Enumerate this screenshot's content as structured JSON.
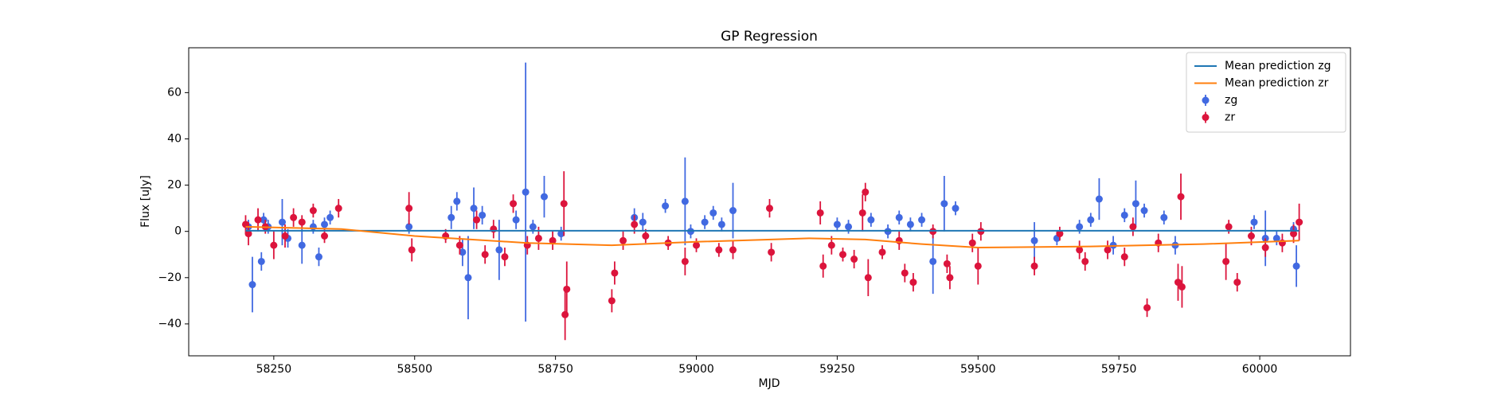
{
  "chart_data": {
    "type": "errorbar_scatter",
    "title": "GP Regression",
    "x_label": "MJD",
    "y_label": "Flux [uJy]",
    "xlim": [
      58099,
      60161
    ],
    "ylim": [
      -53.8,
      79.4
    ],
    "xticks": [
      58250,
      58500,
      58750,
      59000,
      59250,
      59500,
      59750,
      60000
    ],
    "yticks": [
      {
        "value": -40,
        "label": "−40"
      },
      {
        "value": -20,
        "label": "−20"
      },
      0,
      20,
      40,
      60
    ],
    "legend": "upper right",
    "lines": [
      {
        "name": "Mean prediction zg",
        "color": "#1f77b4",
        "x": [
          58200,
          60070
        ],
        "values": [
          0.3,
          0.3
        ]
      },
      {
        "name": "Mean prediction zr",
        "color": "#ff7f0e",
        "x": [
          58200,
          58370,
          58500,
          58700,
          58850,
          59000,
          59200,
          59300,
          59400,
          59500,
          59700,
          59900,
          60070
        ],
        "values": [
          2,
          1,
          -2,
          -5,
          -6,
          -4.5,
          -3,
          -3.5,
          -5.5,
          -7,
          -6.5,
          -5.5,
          -4
        ]
      }
    ],
    "series": [
      {
        "name": "zg",
        "color": "#4169e1",
        "x": [
          58205,
          58212,
          58228,
          58232,
          58240,
          58265,
          58275,
          58300,
          58320,
          58330,
          58340,
          58350,
          58490,
          58565,
          58575,
          58585,
          58595,
          58605,
          58620,
          58650,
          58680,
          58697,
          58710,
          58730,
          58760,
          58890,
          58905,
          58945,
          58980,
          58990,
          59015,
          59030,
          59045,
          59065,
          59250,
          59270,
          59310,
          59340,
          59360,
          59380,
          59400,
          59420,
          59440,
          59460,
          59600,
          59640,
          59680,
          59700,
          59715,
          59740,
          59760,
          59780,
          59795,
          59830,
          59850,
          59990,
          60010,
          60030,
          60060,
          60065
        ],
        "values": [
          2,
          -23,
          -13,
          5,
          2,
          4,
          -3,
          -6,
          2,
          -11,
          3,
          6,
          2,
          6,
          13,
          -9,
          -20,
          10,
          7,
          -8,
          5,
          17,
          2,
          15,
          -1,
          6,
          4,
          11,
          13,
          0,
          4,
          8,
          3,
          9,
          3,
          2,
          5,
          0,
          6,
          3,
          5,
          -13,
          12,
          10,
          -4,
          -3,
          2,
          5,
          14,
          -6,
          7,
          12,
          9,
          6,
          -6,
          4,
          -3,
          -3,
          1,
          -15
        ],
        "errors": [
          3,
          12,
          4,
          3,
          3,
          10,
          4,
          8,
          3,
          4,
          3,
          3,
          3,
          5,
          4,
          6,
          18,
          9,
          4,
          13,
          4,
          56,
          3,
          9,
          3,
          4,
          4,
          3,
          19,
          3,
          3,
          3,
          3,
          12,
          3,
          3,
          3,
          3,
          3,
          3,
          3,
          14,
          12,
          3,
          8,
          3,
          3,
          3,
          9,
          4,
          3,
          10,
          3,
          3,
          4,
          3,
          12,
          3,
          3,
          9
        ]
      },
      {
        "name": "zr",
        "color": "#dc143c",
        "x": [
          58200,
          58205,
          58222,
          58235,
          58250,
          58270,
          58285,
          58300,
          58320,
          58340,
          58365,
          58490,
          58495,
          58555,
          58580,
          58610,
          58625,
          58640,
          58660,
          58675,
          58700,
          58720,
          58745,
          58765,
          58767,
          58770,
          58850,
          58855,
          58870,
          58890,
          58910,
          58950,
          58980,
          59000,
          59040,
          59065,
          59130,
          59133,
          59220,
          59225,
          59240,
          59260,
          59280,
          59295,
          59300,
          59305,
          59330,
          59360,
          59370,
          59385,
          59420,
          59445,
          59450,
          59490,
          59500,
          59505,
          59600,
          59645,
          59680,
          59690,
          59730,
          59760,
          59775,
          59800,
          59820,
          59855,
          59860,
          59862,
          59940,
          59945,
          59960,
          59985,
          60010,
          60040,
          60060,
          60070
        ],
        "values": [
          3,
          -1,
          5,
          2,
          -6,
          -2,
          6,
          4,
          9,
          -2,
          10,
          10,
          -8,
          -2,
          -6,
          5,
          -10,
          1,
          -11,
          12,
          -6,
          -3,
          -4,
          12,
          -36,
          -25,
          -30,
          -18,
          -4,
          3,
          -2,
          -5,
          -13,
          -6,
          -8,
          -8,
          10,
          -9,
          8,
          -15,
          -6,
          -10,
          -12,
          8,
          17,
          -20,
          -9,
          -4,
          -18,
          -22,
          0,
          -14,
          -20,
          -5,
          -15,
          0,
          -15,
          -1,
          -8,
          -13,
          -8,
          -11,
          2,
          -33,
          -5,
          -22,
          15,
          -24,
          -13,
          2,
          -22,
          -2,
          -7,
          -5,
          -1,
          4
        ],
        "errors": [
          4,
          5,
          5,
          3,
          6,
          5,
          4,
          3,
          3,
          3,
          4,
          7,
          5,
          3,
          4,
          4,
          4,
          4,
          4,
          4,
          4,
          5,
          4,
          14,
          11,
          12,
          5,
          5,
          4,
          4,
          3,
          3,
          6,
          3,
          3,
          4,
          4,
          4,
          5,
          5,
          4,
          3,
          4,
          8,
          4,
          8,
          3,
          4,
          4,
          4,
          3,
          4,
          5,
          4,
          8,
          4,
          4,
          3,
          4,
          4,
          4,
          4,
          4,
          4,
          4,
          8,
          10,
          9,
          8,
          3,
          4,
          4,
          4,
          4,
          4,
          8
        ]
      }
    ]
  }
}
